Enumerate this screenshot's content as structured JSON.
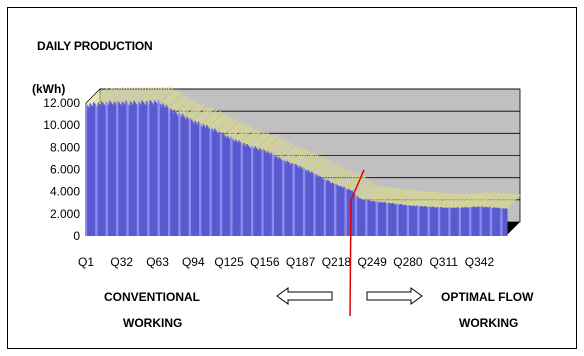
{
  "title": "DAILY PRODUCTION",
  "y_unit": "(kWh)",
  "annotations": {
    "left_line1": "CONVENTIONAL",
    "left_line2": "WORKING",
    "right_line1": "OPTIMAL FLOW",
    "right_line2": "WORKING"
  },
  "colors": {
    "bar_front": "#5a5ad0",
    "bar_side": "#8c8cf0",
    "bar_top": "#d8d890",
    "wall": "#c0c0c0",
    "floor": "#000000",
    "divider": "#e00000"
  },
  "chart_data": {
    "type": "bar",
    "title": "DAILY PRODUCTION",
    "ylabel": "(kWh)",
    "ylim": [
      0,
      12000
    ],
    "y_ticks": [
      "0",
      "2.000",
      "4.000",
      "6.000",
      "8.000",
      "10.000",
      "12.000"
    ],
    "x_tick_labels": [
      "Q1",
      "Q32",
      "Q63",
      "Q94",
      "Q125",
      "Q156",
      "Q187",
      "Q218",
      "Q249",
      "Q280",
      "Q311",
      "Q342"
    ],
    "x_ticks_at": [
      1,
      32,
      63,
      94,
      125,
      156,
      187,
      218,
      249,
      280,
      311,
      342
    ],
    "grid": true,
    "days": 365,
    "profile_days": [
      1,
      10,
      20,
      32,
      45,
      63,
      75,
      94,
      110,
      125,
      140,
      156,
      170,
      187,
      200,
      215,
      230,
      238,
      249,
      265,
      280,
      295,
      311,
      325,
      342,
      355,
      365
    ],
    "profile_values": [
      12000,
      12100,
      12200,
      12200,
      12200,
      12300,
      11500,
      10500,
      9800,
      9000,
      8300,
      7800,
      7000,
      6300,
      5600,
      4800,
      4200,
      3400,
      3200,
      3000,
      2800,
      2700,
      2600,
      2600,
      2700,
      2600,
      2500
    ]
  }
}
